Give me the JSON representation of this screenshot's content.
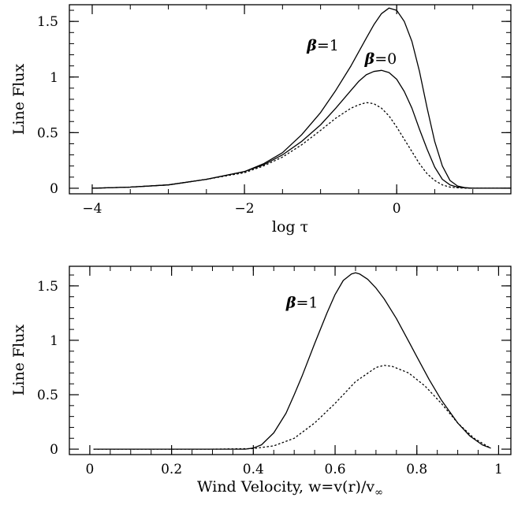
{
  "chart_data": [
    {
      "type": "line",
      "xlabel": "log τ",
      "ylabel": "Line Flux",
      "xlim": [
        -4.3,
        1.5
      ],
      "ylim": [
        -0.05,
        1.65
      ],
      "xticks": [
        -4,
        -2,
        0
      ],
      "xtick_labels": [
        "−4",
        "−2",
        "0"
      ],
      "yticks": [
        0,
        0.5,
        1,
        1.5
      ],
      "ytick_labels": [
        "0",
        "0.5",
        "1",
        "1.5"
      ],
      "grid": false,
      "annotations": [
        {
          "beta": "β",
          "rest": "=1",
          "x": -1.18,
          "y": 1.24
        },
        {
          "beta": "β",
          "rest": "=0",
          "x": -0.42,
          "y": 1.12
        }
      ],
      "series": [
        {
          "style": "solid",
          "x": [
            -4.0,
            -3.5,
            -3.0,
            -2.5,
            -2.0,
            -1.75,
            -1.5,
            -1.25,
            -1.0,
            -0.8,
            -0.6,
            -0.4,
            -0.3,
            -0.2,
            -0.1,
            0.0,
            0.1,
            0.2,
            0.3,
            0.4,
            0.5,
            0.6,
            0.7,
            0.8,
            0.9,
            1.0,
            1.2,
            1.5
          ],
          "y": [
            0.0,
            0.01,
            0.03,
            0.08,
            0.15,
            0.22,
            0.32,
            0.48,
            0.68,
            0.88,
            1.1,
            1.35,
            1.47,
            1.57,
            1.62,
            1.6,
            1.5,
            1.32,
            1.05,
            0.72,
            0.42,
            0.2,
            0.07,
            0.02,
            0.005,
            0.0,
            0.0,
            0.0
          ]
        },
        {
          "style": "solid",
          "x": [
            -4.0,
            -3.5,
            -3.0,
            -2.5,
            -2.0,
            -1.75,
            -1.5,
            -1.25,
            -1.0,
            -0.8,
            -0.6,
            -0.5,
            -0.4,
            -0.3,
            -0.2,
            -0.1,
            0.0,
            0.1,
            0.2,
            0.3,
            0.4,
            0.5,
            0.6,
            0.7,
            0.8,
            0.9,
            1.0,
            1.2,
            1.5
          ],
          "y": [
            0.0,
            0.01,
            0.03,
            0.08,
            0.15,
            0.21,
            0.3,
            0.42,
            0.57,
            0.72,
            0.88,
            0.96,
            1.02,
            1.05,
            1.06,
            1.04,
            0.98,
            0.87,
            0.72,
            0.53,
            0.35,
            0.19,
            0.08,
            0.03,
            0.01,
            0.003,
            0.0,
            0.0,
            0.0
          ]
        },
        {
          "style": "dotted",
          "x": [
            -4.0,
            -3.5,
            -3.0,
            -2.5,
            -2.0,
            -1.75,
            -1.5,
            -1.25,
            -1.0,
            -0.8,
            -0.6,
            -0.5,
            -0.4,
            -0.3,
            -0.2,
            -0.1,
            0.0,
            0.1,
            0.2,
            0.3,
            0.4,
            0.5,
            0.6,
            0.7,
            0.8,
            0.9,
            1.0,
            1.2,
            1.5
          ],
          "y": [
            0.0,
            0.01,
            0.03,
            0.08,
            0.14,
            0.2,
            0.28,
            0.39,
            0.52,
            0.63,
            0.72,
            0.75,
            0.77,
            0.76,
            0.72,
            0.65,
            0.55,
            0.44,
            0.33,
            0.22,
            0.13,
            0.07,
            0.03,
            0.01,
            0.004,
            0.001,
            0.0,
            0.0,
            0.0
          ]
        }
      ]
    },
    {
      "type": "line",
      "xlabel": "Wind Velocity, w=v(r)/v",
      "xlabel_sub": "∞",
      "ylabel": "Line Flux",
      "xlim": [
        -0.05,
        1.03
      ],
      "ylim": [
        -0.05,
        1.68
      ],
      "xticks": [
        0,
        0.2,
        0.4,
        0.6,
        0.8,
        1
      ],
      "xtick_labels": [
        "0",
        "0.2",
        "0.4",
        "0.6",
        "0.8",
        "1"
      ],
      "yticks": [
        0,
        0.5,
        1,
        1.5
      ],
      "ytick_labels": [
        "0",
        "0.5",
        "1",
        "1.5"
      ],
      "grid": false,
      "annotations": [
        {
          "beta": "β",
          "rest": "=1",
          "x": 0.48,
          "y": 1.3
        }
      ],
      "series": [
        {
          "style": "solid",
          "x": [
            0.01,
            0.1,
            0.2,
            0.3,
            0.38,
            0.4,
            0.42,
            0.45,
            0.48,
            0.5,
            0.52,
            0.55,
            0.58,
            0.6,
            0.62,
            0.64,
            0.65,
            0.66,
            0.68,
            0.7,
            0.72,
            0.75,
            0.78,
            0.8,
            0.83,
            0.86,
            0.9,
            0.93,
            0.96,
            0.98
          ],
          "y": [
            0.0,
            0.0,
            0.0,
            0.0,
            0.0,
            0.01,
            0.04,
            0.15,
            0.33,
            0.5,
            0.68,
            0.97,
            1.25,
            1.42,
            1.55,
            1.61,
            1.62,
            1.61,
            1.56,
            1.48,
            1.38,
            1.2,
            0.99,
            0.85,
            0.64,
            0.45,
            0.24,
            0.12,
            0.04,
            0.01
          ]
        },
        {
          "style": "dotted",
          "x": [
            0.01,
            0.1,
            0.2,
            0.3,
            0.4,
            0.45,
            0.5,
            0.55,
            0.6,
            0.65,
            0.7,
            0.72,
            0.74,
            0.78,
            0.82,
            0.86,
            0.9,
            0.94,
            0.98
          ],
          "y": [
            0.0,
            0.0,
            0.0,
            0.0,
            0.005,
            0.03,
            0.1,
            0.24,
            0.42,
            0.62,
            0.75,
            0.77,
            0.76,
            0.7,
            0.58,
            0.42,
            0.24,
            0.1,
            0.01
          ]
        }
      ]
    }
  ]
}
